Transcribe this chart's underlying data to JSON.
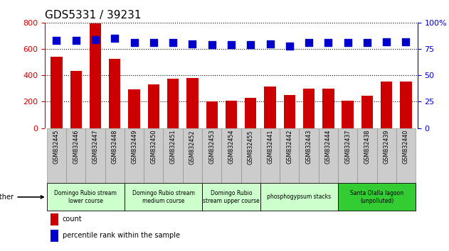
{
  "title": "GDS5331 / 39231",
  "samples": [
    "GSM832445",
    "GSM832446",
    "GSM832447",
    "GSM832448",
    "GSM832449",
    "GSM832450",
    "GSM832451",
    "GSM832452",
    "GSM832453",
    "GSM832454",
    "GSM832455",
    "GSM832441",
    "GSM832442",
    "GSM832443",
    "GSM832444",
    "GSM832437",
    "GSM832438",
    "GSM832439",
    "GSM832440"
  ],
  "counts": [
    540,
    435,
    795,
    525,
    295,
    330,
    375,
    380,
    200,
    205,
    230,
    315,
    250,
    300,
    300,
    205,
    245,
    350,
    350
  ],
  "percentiles": [
    83,
    83,
    84,
    85,
    81,
    81,
    81,
    80,
    79,
    79,
    79,
    80,
    78,
    81,
    81,
    81,
    81,
    82,
    82
  ],
  "bar_color": "#cc0000",
  "dot_color": "#0000cc",
  "ylim_left": [
    0,
    800
  ],
  "ylim_right": [
    0,
    100
  ],
  "yticks_left": [
    0,
    200,
    400,
    600,
    800
  ],
  "yticks_right": [
    0,
    25,
    50,
    75,
    100
  ],
  "groups": [
    {
      "label": "Domingo Rubio stream\nlower course",
      "color": "#ccffcc",
      "start": 0,
      "end": 4
    },
    {
      "label": "Domingo Rubio stream\nmedium course",
      "color": "#ccffcc",
      "start": 4,
      "end": 8
    },
    {
      "label": "Domingo Rubio\nstream upper course",
      "color": "#ccffcc",
      "start": 8,
      "end": 11
    },
    {
      "label": "phosphogypsum stacks",
      "color": "#ccffcc",
      "start": 11,
      "end": 15
    },
    {
      "label": "Santa Olalla lagoon\n(unpolluted)",
      "color": "#33cc33",
      "start": 15,
      "end": 19
    }
  ],
  "other_label": "other",
  "legend_count_label": "count",
  "legend_pct_label": "percentile rank within the sample",
  "title_fontsize": 11,
  "axis_label_color_left": "#cc0000",
  "axis_label_color_right": "#0000cc",
  "grid_color": "#000000",
  "bar_width": 0.6,
  "dot_size": 50,
  "name_bg_color": "#cccccc",
  "name_border_color": "#888888"
}
